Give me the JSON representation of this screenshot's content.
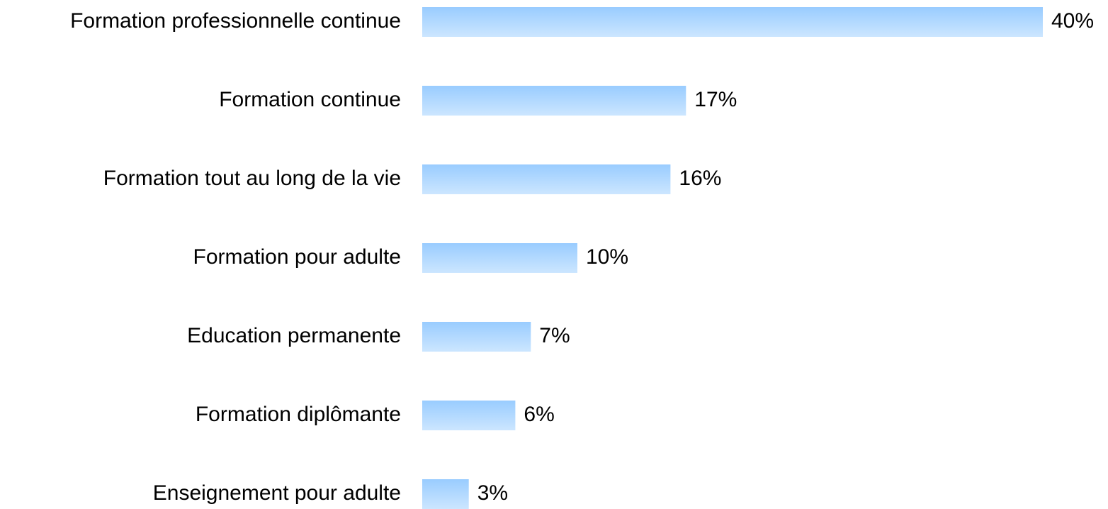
{
  "chart_data": {
    "type": "bar",
    "orientation": "horizontal",
    "categories": [
      "Formation professionnelle continue",
      "Formation continue",
      "Formation tout au long de la vie",
      "Formation pour adulte",
      "Education permanente",
      "Formation diplômante",
      "Enseignement pour adulte"
    ],
    "values": [
      40,
      17,
      16,
      10,
      7,
      6,
      3
    ],
    "value_labels": [
      "40%",
      "17%",
      "16%",
      "10%",
      "7%",
      "6%",
      "3%"
    ],
    "color": "#99ccff",
    "xlim": [
      0,
      40
    ]
  }
}
